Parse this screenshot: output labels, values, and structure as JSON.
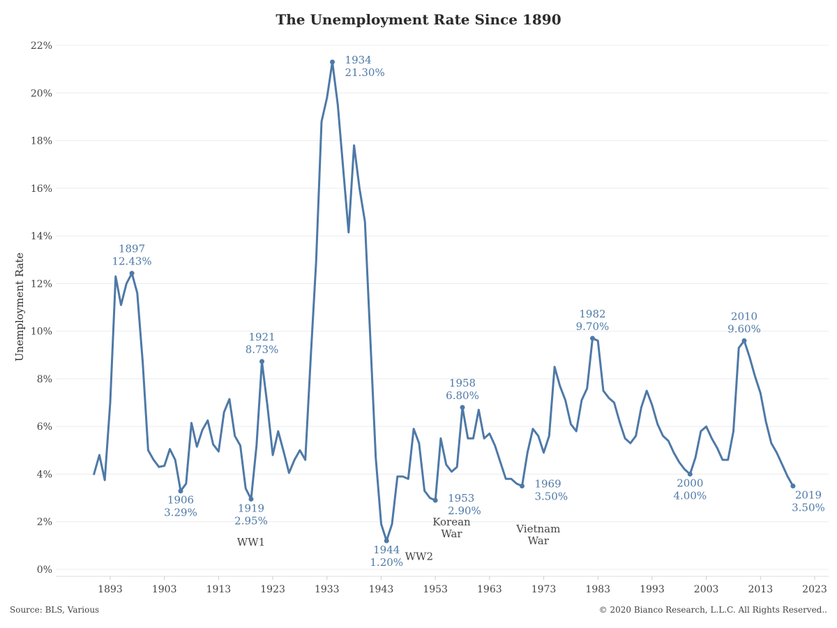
{
  "title": "The Unemployment Rate Since 1890",
  "source": "Source: BLS, Various",
  "copyright": "© 2020 Bianco Research, L.L.C. All Rights Reserved..",
  "colors": {
    "line": "#4e79a7",
    "annotation": "#4e79a7",
    "event_text": "#444444",
    "grid": "#ececec"
  },
  "chart_data": {
    "type": "line",
    "title": "The Unemployment Rate Since 1890",
    "ylabel": "Unemployment Rate",
    "xlabel": "",
    "xlim": [
      1883,
      2025
    ],
    "ylim": [
      0,
      22
    ],
    "x_ticks": [
      1893,
      1903,
      1913,
      1923,
      1933,
      1943,
      1953,
      1963,
      1973,
      1983,
      1993,
      2003,
      2013,
      2023
    ],
    "y_ticks": [
      0,
      2,
      4,
      6,
      8,
      10,
      12,
      14,
      16,
      18,
      20,
      22
    ],
    "y_tick_labels": [
      "0%",
      "2%",
      "4%",
      "6%",
      "8%",
      "10%",
      "12%",
      "14%",
      "16%",
      "18%",
      "20%",
      "22%"
    ],
    "grid": "horizontal",
    "series": [
      {
        "x": [
          1890,
          1891,
          1892,
          1893,
          1894,
          1895,
          1896,
          1897,
          1898,
          1899,
          1900,
          1901,
          1902,
          1903,
          1904,
          1905,
          1906,
          1907,
          1908,
          1909,
          1910,
          1911,
          1912,
          1913,
          1914,
          1915,
          1916,
          1917,
          1918,
          1919,
          1920,
          1921,
          1922,
          1923,
          1924,
          1925,
          1926,
          1927,
          1928,
          1929,
          1930,
          1931,
          1932,
          1933,
          1934,
          1935,
          1936,
          1937,
          1938,
          1939,
          1940,
          1941,
          1942,
          1943,
          1944,
          1945,
          1946,
          1947,
          1948,
          1949,
          1950,
          1951,
          1952,
          1953,
          1954,
          1955,
          1956,
          1957,
          1958,
          1959,
          1960,
          1961,
          1962,
          1963,
          1964,
          1965,
          1966,
          1967,
          1968,
          1969,
          1970,
          1971,
          1972,
          1973,
          1974,
          1975,
          1976,
          1977,
          1978,
          1979,
          1980,
          1981,
          1982,
          1983,
          1984,
          1985,
          1986,
          1987,
          1988,
          1989,
          1990,
          1991,
          1992,
          1993,
          1994,
          1995,
          1996,
          1997,
          1998,
          1999,
          2000,
          2001,
          2002,
          2003,
          2004,
          2005,
          2006,
          2007,
          2008,
          2009,
          2010,
          2011,
          2012,
          2013,
          2014,
          2015,
          2016,
          2017,
          2018,
          2019
        ],
        "values": [
          4.0,
          4.8,
          3.75,
          7.0,
          12.3,
          11.1,
          12.0,
          12.43,
          11.6,
          8.7,
          5.0,
          4.6,
          4.3,
          4.35,
          5.05,
          4.6,
          3.29,
          3.6,
          6.15,
          5.15,
          5.85,
          6.25,
          5.25,
          4.95,
          6.6,
          7.15,
          5.6,
          5.2,
          3.4,
          2.95,
          5.2,
          8.73,
          6.9,
          4.8,
          5.8,
          4.95,
          4.05,
          4.6,
          5.0,
          4.6,
          8.9,
          12.9,
          18.8,
          19.8,
          21.3,
          19.5,
          16.8,
          14.15,
          17.8,
          16.0,
          14.6,
          9.7,
          4.7,
          1.9,
          1.2,
          1.9,
          3.9,
          3.9,
          3.8,
          5.9,
          5.3,
          3.3,
          3.0,
          2.9,
          5.5,
          4.4,
          4.1,
          4.3,
          6.8,
          5.5,
          5.5,
          6.7,
          5.5,
          5.7,
          5.2,
          4.5,
          3.8,
          3.8,
          3.6,
          3.5,
          4.9,
          5.9,
          5.6,
          4.9,
          5.6,
          8.5,
          7.7,
          7.1,
          6.1,
          5.8,
          7.1,
          7.6,
          9.7,
          9.6,
          7.5,
          7.2,
          7.0,
          6.2,
          5.5,
          5.3,
          5.6,
          6.8,
          7.5,
          6.9,
          6.1,
          5.6,
          5.4,
          4.9,
          4.5,
          4.2,
          4.0,
          4.7,
          5.8,
          6.0,
          5.5,
          5.1,
          4.6,
          4.6,
          5.8,
          9.3,
          9.6,
          8.9,
          8.1,
          7.4,
          6.2,
          5.3,
          4.9,
          4.4,
          3.9,
          3.5
        ]
      }
    ],
    "annotations": [
      {
        "year": 1897,
        "value": 12.43,
        "label": "1897",
        "value_label": "12.43%",
        "position": "above"
      },
      {
        "year": 1906,
        "value": 3.29,
        "label": "1906",
        "value_label": "3.29%",
        "position": "below"
      },
      {
        "year": 1919,
        "value": 2.95,
        "label": "1919",
        "value_label": "2.95%",
        "position": "below"
      },
      {
        "year": 1921,
        "value": 8.73,
        "label": "1921",
        "value_label": "8.73%",
        "position": "above"
      },
      {
        "year": 1934,
        "value": 21.3,
        "label": "1934",
        "value_label": "21.30%",
        "position": "right"
      },
      {
        "year": 1944,
        "value": 1.2,
        "label": "1944",
        "value_label": "1.20%",
        "position": "below"
      },
      {
        "year": 1953,
        "value": 2.9,
        "label": "1953",
        "value_label": "2.90%",
        "position": "right"
      },
      {
        "year": 1958,
        "value": 6.8,
        "label": "1958",
        "value_label": "6.80%",
        "position": "above"
      },
      {
        "year": 1969,
        "value": 3.5,
        "label": "1969",
        "value_label": "3.50%",
        "position": "right"
      },
      {
        "year": 1982,
        "value": 9.7,
        "label": "1982",
        "value_label": "9.70%",
        "position": "above"
      },
      {
        "year": 2000,
        "value": 4.0,
        "label": "2000",
        "value_label": "4.00%",
        "position": "below"
      },
      {
        "year": 2010,
        "value": 9.6,
        "label": "2010",
        "value_label": "9.60%",
        "position": "above"
      },
      {
        "year": 2019,
        "value": 3.5,
        "label": "2019",
        "value_label": "3.50%",
        "position": "below-right"
      }
    ],
    "event_labels": [
      {
        "text": "WW1",
        "year": 1919,
        "value": 1.0
      },
      {
        "text": "WW2",
        "year": 1950,
        "value": 0.4
      },
      {
        "text": "Korean",
        "year": 1956,
        "value": 1.85
      },
      {
        "text": "War",
        "year": 1956,
        "value": 1.35
      },
      {
        "text": "Vietnam",
        "year": 1972,
        "value": 1.55
      },
      {
        "text": "War",
        "year": 1972,
        "value": 1.05
      }
    ]
  }
}
